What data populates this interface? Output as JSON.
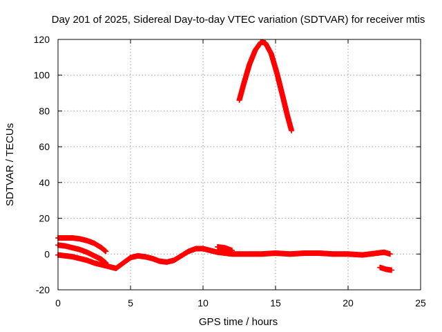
{
  "chart_data": {
    "type": "scatter",
    "title": "Day 201 of 2025, Sidereal Day-to-day VTEC variation (SDTVAR) for receiver mtis",
    "xlabel": "GPS time / hours",
    "ylabel": "SDTVAR / TECUs",
    "xlim": [
      0,
      25
    ],
    "ylim": [
      -20,
      120
    ],
    "xticks": [
      0,
      5,
      10,
      15,
      20,
      25
    ],
    "yticks": [
      -20,
      0,
      20,
      40,
      60,
      80,
      100,
      120
    ],
    "grid": true,
    "marker": "plus",
    "color": "#ff0000",
    "series": [
      {
        "values": [
          [
            0,
            9
          ],
          [
            0.5,
            9
          ],
          [
            1,
            9
          ],
          [
            1.5,
            8.5
          ],
          [
            2,
            7.5
          ],
          [
            2.5,
            6
          ],
          [
            3,
            3.5
          ],
          [
            3.3,
            1.5
          ]
        ]
      },
      {
        "values": [
          [
            0,
            5
          ],
          [
            0.5,
            4.5
          ],
          [
            1,
            3.5
          ],
          [
            1.5,
            2.5
          ],
          [
            2,
            1
          ],
          [
            2.5,
            -1
          ],
          [
            3,
            -3
          ],
          [
            3.3,
            -5
          ]
        ]
      },
      {
        "values": [
          [
            0,
            -0.5
          ],
          [
            0.5,
            -1
          ],
          [
            1,
            -1.5
          ],
          [
            1.5,
            -2.5
          ],
          [
            2,
            -3.5
          ],
          [
            2.5,
            -5
          ],
          [
            3,
            -6
          ],
          [
            3.5,
            -7
          ],
          [
            4,
            -8
          ],
          [
            4.5,
            -5
          ],
          [
            5,
            -2
          ],
          [
            5.5,
            -1
          ],
          [
            6,
            -1.5
          ],
          [
            6.5,
            -2.5
          ],
          [
            7,
            -4
          ],
          [
            7.5,
            -4.5
          ],
          [
            8,
            -3.5
          ],
          [
            8.5,
            -1
          ],
          [
            9,
            1.5
          ],
          [
            9.5,
            3
          ],
          [
            10,
            3
          ],
          [
            10.5,
            2
          ],
          [
            11,
            1
          ],
          [
            11.5,
            0.5
          ],
          [
            12,
            0
          ],
          [
            13,
            0
          ],
          [
            14,
            0
          ],
          [
            15,
            0.5
          ],
          [
            16,
            0
          ],
          [
            17,
            0.5
          ],
          [
            18,
            0.5
          ],
          [
            19,
            0
          ],
          [
            20,
            0
          ],
          [
            21,
            -0.5
          ],
          [
            22,
            0.5
          ],
          [
            22.5,
            1
          ],
          [
            22.9,
            0
          ]
        ]
      },
      {
        "values": [
          [
            11,
            4
          ],
          [
            11.5,
            3.5
          ],
          [
            12,
            2
          ]
        ]
      },
      {
        "values": [
          [
            22.2,
            -7.5
          ],
          [
            22.6,
            -8.5
          ],
          [
            23,
            -9
          ]
        ]
      },
      {
        "values": [
          [
            12.5,
            86
          ],
          [
            12.8,
            95
          ],
          [
            13.2,
            106
          ],
          [
            13.6,
            114
          ],
          [
            14,
            118.5
          ],
          [
            14.3,
            118
          ],
          [
            14.7,
            112
          ],
          [
            15.1,
            101
          ],
          [
            15.5,
            88
          ],
          [
            15.8,
            78
          ],
          [
            16.1,
            69
          ]
        ]
      }
    ]
  }
}
